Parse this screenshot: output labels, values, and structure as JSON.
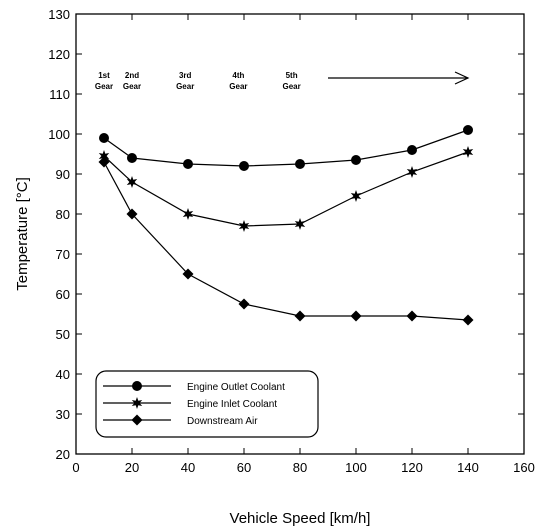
{
  "chart_data": {
    "type": "line",
    "xlabel": "Vehicle Speed [km/h]",
    "ylabel": "Temperature [°C]",
    "xlim": [
      0,
      160
    ],
    "ylim": [
      20,
      130
    ],
    "xticks": [
      0,
      20,
      40,
      60,
      80,
      100,
      120,
      140,
      160
    ],
    "yticks": [
      20,
      30,
      40,
      50,
      60,
      70,
      80,
      90,
      100,
      110,
      120,
      130
    ],
    "x": [
      10,
      20,
      40,
      60,
      80,
      100,
      120,
      140
    ],
    "series": [
      {
        "name": "Engine Outlet Coolant",
        "marker": "circle",
        "values": [
          99,
          94,
          92.5,
          92,
          92.5,
          93.5,
          96,
          101
        ]
      },
      {
        "name": "Engine Inlet Coolant",
        "marker": "star",
        "values": [
          94.5,
          88,
          80,
          77,
          77.5,
          84.5,
          90.5,
          95.5
        ]
      },
      {
        "name": "Downstream Air",
        "marker": "diamond",
        "values": [
          93,
          80,
          65,
          57.5,
          54.5,
          54.5,
          54.5,
          53.5
        ]
      }
    ],
    "annotations": [
      {
        "line1": "1st",
        "line2": "Gear",
        "x": 10
      },
      {
        "line1": "2nd",
        "line2": "Gear",
        "x": 20
      },
      {
        "line1": "3rd",
        "line2": "Gear",
        "x": 39
      },
      {
        "line1": "4th",
        "line2": "Gear",
        "x": 58
      },
      {
        "line1": "5th",
        "line2": "Gear",
        "x": 77
      }
    ],
    "arrow": {
      "x_start": 90,
      "x_end": 140,
      "y": 114
    },
    "legend_position": "bottom-left",
    "grid": false,
    "line_color": "#000000"
  }
}
